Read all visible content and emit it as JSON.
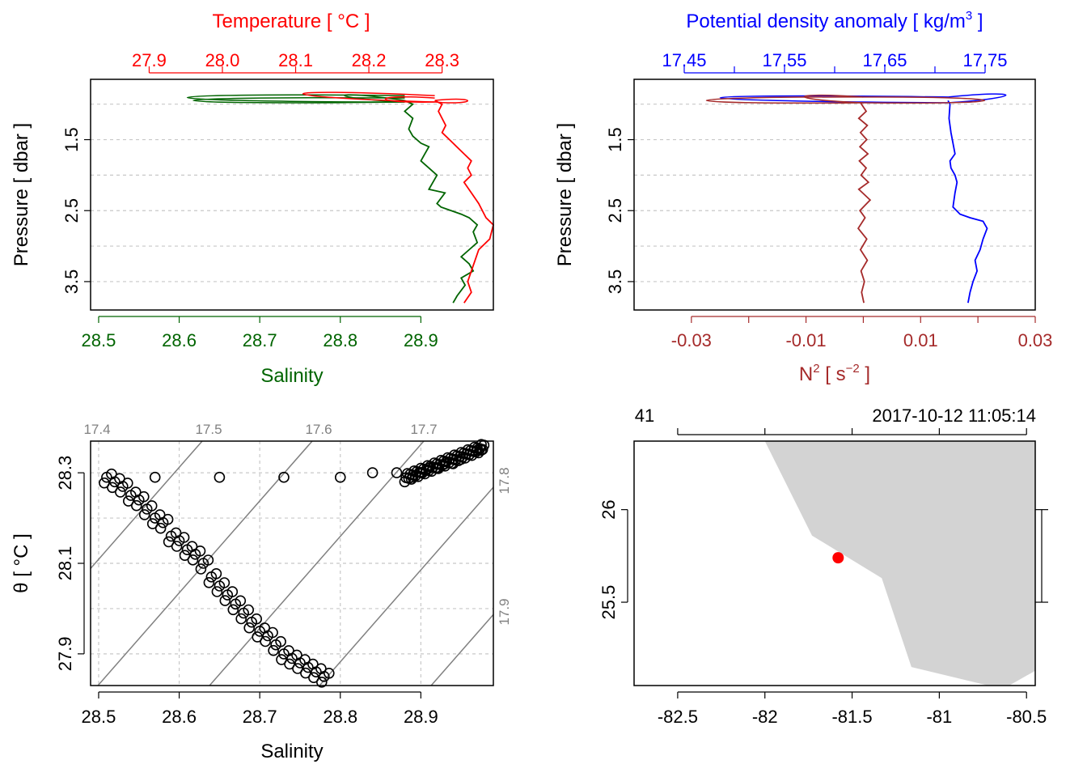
{
  "colors": {
    "salinity": "#006400",
    "temperature": "#ff0000",
    "density": "#0000ff",
    "n2": "#a52a2a",
    "land": "#d3d3d3",
    "station": "#ff0000",
    "isopycnal": "#808080"
  },
  "chart_data": [
    {
      "type": "line",
      "panel": "salinity-temperature-profile",
      "title": "Temperature [ °C ]",
      "xlabel": "Salinity",
      "ylabel": "Pressure [ dbar ]",
      "y_tick_labels": [
        "1.5",
        "2.5",
        "3.5"
      ],
      "ylim": [
        3.9,
        0.65
      ],
      "x_bottom": {
        "label": "Salinity",
        "range": [
          28.49,
          28.99
        ],
        "ticks": [
          28.5,
          28.6,
          28.7,
          28.8,
          28.9
        ],
        "tick_labels": [
          "28.5",
          "28.6",
          "28.7",
          "28.8",
          "28.9"
        ]
      },
      "x_top": {
        "label": "Temperature [ °C ]",
        "range": [
          27.82,
          28.37
        ],
        "ticks": [
          27.9,
          28.0,
          28.1,
          28.2,
          28.3
        ],
        "tick_labels": [
          "27.9",
          "28.0",
          "28.1",
          "28.2",
          "28.3"
        ]
      },
      "series": [
        {
          "name": "Salinity",
          "axis": "bottom",
          "color": "#006400",
          "x": [
            28.88,
            28.89,
            28.88,
            28.89,
            28.885,
            28.89,
            28.9,
            28.91,
            28.905,
            28.9,
            28.91,
            28.92,
            28.91,
            28.93,
            28.92,
            28.925,
            28.95,
            28.96,
            28.97,
            28.965,
            28.97,
            28.96,
            28.95,
            28.96,
            28.965,
            28.95,
            28.955,
            28.945,
            28.94
          ],
          "y": [
            0.95,
            1.0,
            1.1,
            1.2,
            1.35,
            1.45,
            1.55,
            1.6,
            1.7,
            1.8,
            1.9,
            2.0,
            2.2,
            2.25,
            2.4,
            2.45,
            2.55,
            2.6,
            2.7,
            2.8,
            2.95,
            3.05,
            3.15,
            3.25,
            3.35,
            3.45,
            3.55,
            3.7,
            3.8
          ]
        },
        {
          "name": "Temperature",
          "axis": "top",
          "color": "#ff0000",
          "x": [
            28.29,
            28.3,
            28.295,
            28.305,
            28.3,
            28.31,
            28.32,
            28.33,
            28.34,
            28.335,
            28.34,
            28.33,
            28.34,
            28.35,
            28.36,
            28.37,
            28.365,
            28.35,
            28.345,
            28.34,
            28.335,
            28.34,
            28.33
          ],
          "y": [
            0.95,
            1.0,
            1.1,
            1.3,
            1.4,
            1.5,
            1.6,
            1.7,
            1.8,
            1.9,
            2.0,
            2.1,
            2.25,
            2.4,
            2.6,
            2.7,
            2.9,
            3.05,
            3.2,
            3.35,
            3.5,
            3.65,
            3.8
          ]
        }
      ]
    },
    {
      "type": "line",
      "panel": "density-n2-profile",
      "title": "Potential density anomaly [ kg/m3 ]",
      "xlabel": "N2 [ s-2 ]",
      "ylabel": "Pressure [ dbar ]",
      "y_tick_labels": [
        "1.5",
        "2.5",
        "3.5"
      ],
      "ylim": [
        3.9,
        0.65
      ],
      "x_top": {
        "label": "Potential density anomaly",
        "range": [
          17.4,
          17.8
        ],
        "ticks": [
          17.45,
          17.5,
          17.55,
          17.6,
          17.65,
          17.7,
          17.75
        ],
        "tick_labels": [
          "17.45",
          "17.55",
          "17.65",
          "17.75"
        ]
      },
      "x_bottom": {
        "label": "N2",
        "range": [
          -0.04,
          0.03
        ],
        "ticks": [
          -0.03,
          -0.02,
          -0.01,
          0.0,
          0.01,
          0.02,
          0.03
        ],
        "tick_labels": [
          "-0.03",
          "-0.01",
          "0.01",
          "0.03"
        ]
      },
      "series": [
        {
          "name": "Potential density anomaly",
          "axis": "top",
          "color": "#0000ff",
          "x": [
            17.713,
            17.715,
            17.714,
            17.716,
            17.718,
            17.72,
            17.715,
            17.716,
            17.72,
            17.722,
            17.72,
            17.718,
            17.725,
            17.735,
            17.748,
            17.752,
            17.748,
            17.745,
            17.74,
            17.742,
            17.738,
            17.735,
            17.733
          ],
          "y": [
            0.95,
            1.0,
            1.2,
            1.4,
            1.55,
            1.7,
            1.8,
            1.9,
            2.0,
            2.1,
            2.25,
            2.45,
            2.55,
            2.6,
            2.65,
            2.75,
            2.9,
            3.05,
            3.2,
            3.35,
            3.5,
            3.65,
            3.8
          ]
        },
        {
          "name": "N2",
          "axis": "bottom",
          "color": "#a52a2a",
          "x": [
            -0.0005,
            0.0005,
            -0.0008,
            0.0007,
            -0.0005,
            0.0006,
            -0.0006,
            0.0008,
            -0.0007,
            0.0005,
            -0.0004,
            0.0009,
            -0.0008,
            0.0012,
            -0.0006,
            0.0003,
            -0.0009,
            0.0006,
            -0.0005,
            0.0007,
            -0.0004,
            0.0002,
            -0.0003,
            0.0001
          ],
          "y": [
            0.98,
            1.1,
            1.2,
            1.3,
            1.4,
            1.5,
            1.6,
            1.7,
            1.8,
            1.9,
            2.0,
            2.1,
            2.2,
            2.35,
            2.5,
            2.6,
            2.75,
            2.9,
            3.05,
            3.2,
            3.35,
            3.5,
            3.65,
            3.8
          ]
        }
      ]
    },
    {
      "type": "scatter",
      "panel": "ts-diagram",
      "xlabel": "Salinity",
      "ylabel": "θ [ °C ]",
      "xlim": [
        28.49,
        28.99
      ],
      "ylim": [
        27.83,
        28.37
      ],
      "x_ticks": [
        28.5,
        28.6,
        28.7,
        28.8,
        28.9
      ],
      "x_tick_labels": [
        "28.5",
        "28.6",
        "28.7",
        "28.8",
        "28.9"
      ],
      "y_ticks": [
        27.9,
        28.1,
        28.3
      ],
      "y_tick_labels": [
        "27.9",
        "28.1",
        "28.3"
      ],
      "isopycnal_labels_top": [
        "17.4",
        "17.5",
        "17.6",
        "17.7"
      ],
      "isopycnal_labels_right": [
        "17.8",
        "17.9"
      ],
      "points": {
        "salinity": [
          28.51,
          28.52,
          28.53,
          28.54,
          28.55,
          28.56,
          28.57,
          28.58,
          28.59,
          28.6,
          28.61,
          28.62,
          28.63,
          28.64,
          28.65,
          28.66,
          28.67,
          28.68,
          28.69,
          28.7,
          28.71,
          28.72,
          28.73,
          28.74,
          28.75,
          28.76,
          28.77,
          28.78,
          28.57,
          28.65,
          28.73,
          28.8,
          28.84,
          28.87,
          28.89,
          28.9,
          28.91,
          28.92,
          28.93,
          28.94,
          28.95,
          28.96,
          28.97,
          28.975
        ],
        "theta": [
          28.29,
          28.28,
          28.27,
          28.25,
          28.24,
          28.22,
          28.2,
          28.19,
          28.16,
          28.15,
          28.13,
          28.12,
          28.1,
          28.07,
          28.05,
          28.03,
          28.01,
          27.99,
          27.97,
          27.95,
          27.94,
          27.92,
          27.9,
          27.89,
          27.88,
          27.87,
          27.86,
          27.85,
          28.29,
          28.29,
          28.29,
          28.29,
          28.3,
          28.3,
          28.29,
          28.3,
          28.31,
          28.31,
          28.32,
          28.32,
          28.33,
          28.34,
          28.35,
          28.35
        ]
      }
    },
    {
      "type": "map",
      "panel": "station-map",
      "top_left_label": "41",
      "top_right_label": "2017-10-12 11:05:14",
      "xlim": [
        -82.75,
        -80.45
      ],
      "ylim": [
        25.05,
        26.37
      ],
      "x_ticks": [
        -82.5,
        -82,
        -81.5,
        -81,
        -80.5
      ],
      "x_tick_labels": [
        "-82.5",
        "-82",
        "-81.5",
        "-81",
        "-80.5"
      ],
      "y_ticks": [
        25.5,
        26
      ],
      "y_tick_labels": [
        "25.5",
        "26"
      ],
      "station": {
        "lon": -81.58,
        "lat": 25.74
      },
      "coastline": {
        "lon": [
          -82.0,
          -81.73,
          -81.33,
          -81.16,
          -80.72,
          -80.6,
          -80.45,
          -80.45
        ],
        "lat": [
          26.37,
          25.86,
          25.63,
          25.15,
          25.05,
          25.05,
          25.13,
          26.37
        ]
      }
    }
  ]
}
